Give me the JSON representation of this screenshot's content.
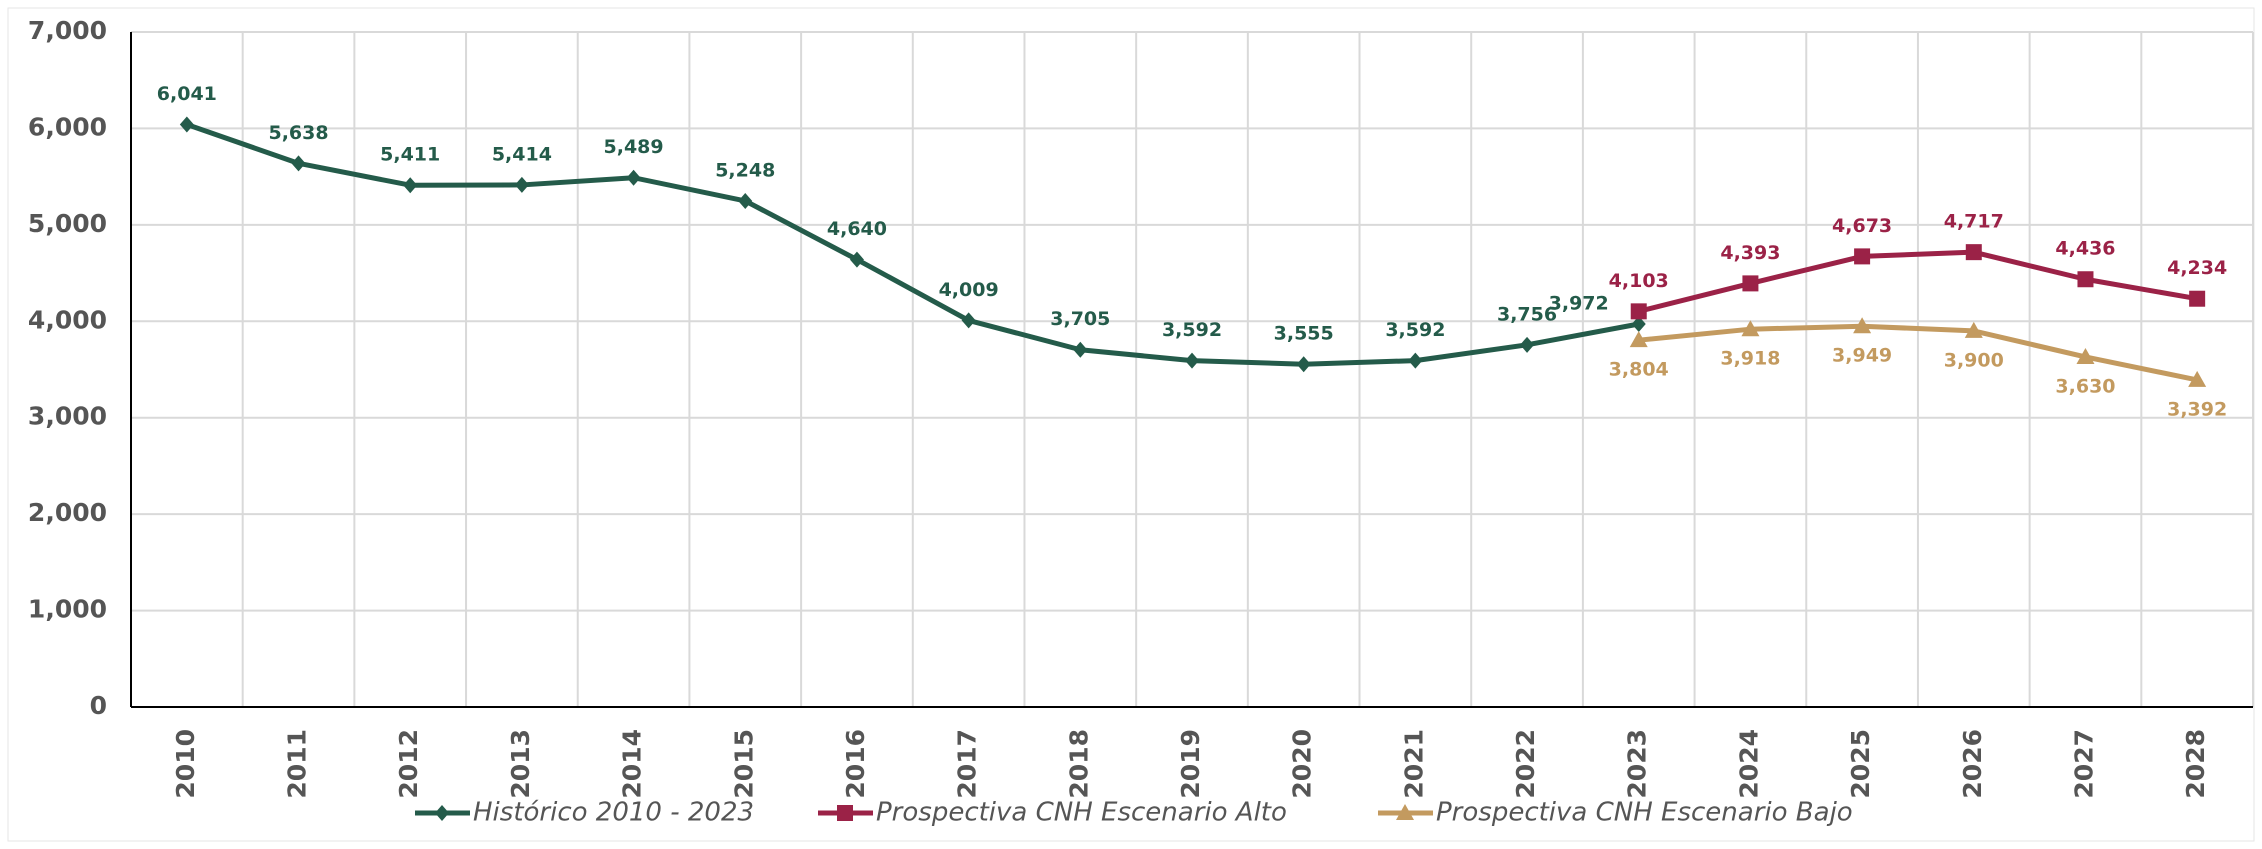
{
  "chart_data": {
    "type": "line",
    "categories": [
      "2010",
      "2011",
      "2012",
      "2013",
      "2014",
      "2015",
      "2016",
      "2017",
      "2018",
      "2019",
      "2020",
      "2021",
      "2022",
      "2023",
      "2024",
      "2025",
      "2026",
      "2027",
      "2028"
    ],
    "series": [
      {
        "name": "Histórico 2010 - 2023",
        "color": "#245b4a",
        "marker": "diamond",
        "values": [
          6041,
          5638,
          5411,
          5414,
          5489,
          5248,
          4640,
          4009,
          3705,
          3592,
          3555,
          3592,
          3756,
          3972,
          null,
          null,
          null,
          null,
          null
        ],
        "value_labels": [
          "6,041",
          "5,638",
          "5,411",
          "5,414",
          "5,489",
          "5,248",
          "4,640",
          "4,009",
          "3,705",
          "3,592",
          "3,555",
          "3,592",
          "3,756",
          "3,972",
          null,
          null,
          null,
          null,
          null
        ]
      },
      {
        "name": "Prospectiva CNH Escenario Alto",
        "color": "#9b2247",
        "marker": "square",
        "values": [
          null,
          null,
          null,
          null,
          null,
          null,
          null,
          null,
          null,
          null,
          null,
          null,
          null,
          4103,
          4393,
          4673,
          4717,
          4436,
          4234
        ],
        "value_labels": [
          null,
          null,
          null,
          null,
          null,
          null,
          null,
          null,
          null,
          null,
          null,
          null,
          null,
          "4,103",
          "4,393",
          "4,673",
          "4,717",
          "4,436",
          "4,234"
        ]
      },
      {
        "name": "Prospectiva CNH Escenario  Bajo",
        "color": "#c39a5f",
        "marker": "triangle",
        "values": [
          null,
          null,
          null,
          null,
          null,
          null,
          null,
          null,
          null,
          null,
          null,
          null,
          null,
          3804,
          3918,
          3949,
          3900,
          3630,
          3392
        ],
        "value_labels": [
          null,
          null,
          null,
          null,
          null,
          null,
          null,
          null,
          null,
          null,
          null,
          null,
          null,
          "3,804",
          "3,918",
          "3,949",
          "3,900",
          "3,630",
          "3,392"
        ]
      }
    ],
    "ylim": [
      0,
      7000
    ],
    "yticks": [
      0,
      {
        "value": 1000,
        "label": "1,000"
      },
      {
        "value": 2000,
        "label": "2,000"
      },
      {
        "value": 3000,
        "label": "3,000"
      },
      {
        "value": 4000,
        "label": "4,000"
      },
      {
        "value": 5000,
        "label": "5,000"
      },
      {
        "value": 6000,
        "label": "6,000"
      },
      {
        "value": 7000,
        "label": "7,000"
      }
    ],
    "grid": true
  }
}
